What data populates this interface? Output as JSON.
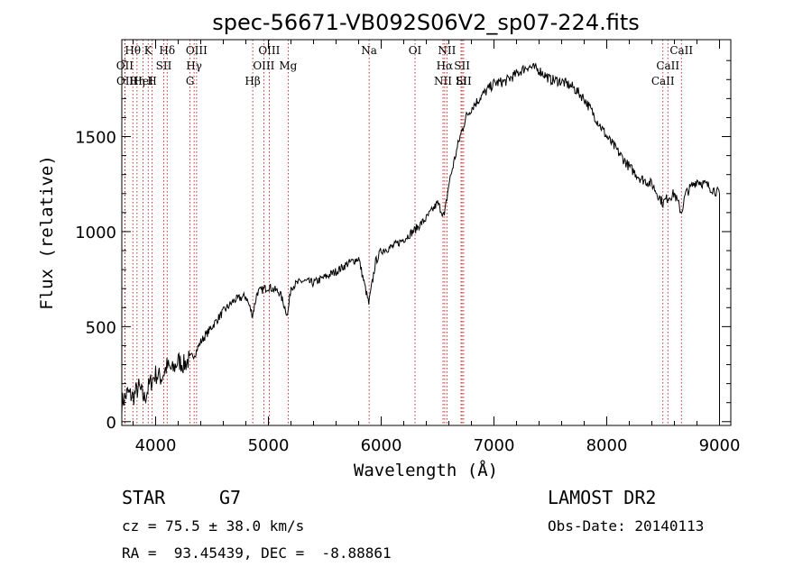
{
  "chart_data": {
    "type": "line",
    "title": "spec-56671-VB092S06V2_sp07-224.fits",
    "xlabel": "Wavelength (Å)",
    "ylabel": "Flux (relative)",
    "xlim": [
      3700,
      9100
    ],
    "ylim": [
      -20,
      2010
    ],
    "xticks": [
      4000,
      5000,
      6000,
      7000,
      8000,
      9000
    ],
    "xtick_labels": [
      "4000",
      "5000",
      "6000",
      "7000",
      "8000",
      "9000"
    ],
    "yticks": [
      0,
      500,
      1000,
      1500
    ],
    "ytick_labels": [
      "0",
      "500",
      "1000",
      "1500"
    ],
    "series": [
      {
        "x": [
          3700,
          3750,
          3800,
          3850,
          3900,
          3950,
          4000,
          4050,
          4100,
          4150,
          4200,
          4250,
          4300,
          4350,
          4400,
          4500,
          4600,
          4700,
          4800,
          4860,
          4900,
          5000,
          5100,
          5170,
          5200,
          5300,
          5400,
          5500,
          5600,
          5700,
          5800,
          5890,
          5950,
          6000,
          6100,
          6200,
          6300,
          6400,
          6500,
          6560,
          6600,
          6650,
          6700,
          6750,
          6800,
          6900,
          7000,
          7100,
          7200,
          7300,
          7400,
          7500,
          7600,
          7700,
          7800,
          7900,
          8000,
          8100,
          8200,
          8300,
          8400,
          8498,
          8542,
          8600,
          8662,
          8700,
          8800,
          8900,
          8950,
          9000
        ],
        "y": [
          100,
          150,
          130,
          180,
          120,
          200,
          250,
          230,
          290,
          270,
          320,
          300,
          330,
          360,
          420,
          500,
          580,
          640,
          660,
          560,
          680,
          710,
          680,
          560,
          710,
          740,
          730,
          760,
          790,
          830,
          860,
          620,
          840,
          900,
          920,
          960,
          1010,
          1070,
          1150,
          1080,
          1250,
          1380,
          1500,
          1600,
          1650,
          1720,
          1780,
          1790,
          1830,
          1870,
          1850,
          1800,
          1790,
          1760,
          1700,
          1600,
          1500,
          1420,
          1340,
          1280,
          1250,
          1150,
          1180,
          1200,
          1100,
          1200,
          1270,
          1240,
          1220,
          1200
        ]
      }
    ],
    "spectral_lines": [
      {
        "label": "Hθ",
        "x": 3798
      },
      {
        "label": "K",
        "x": 3934
      },
      {
        "label": "Hδ",
        "x": 4102
      },
      {
        "label": "OII",
        "x": 3727
      },
      {
        "label": "HeI",
        "x": 3889
      },
      {
        "label": "SII",
        "x": 4072
      },
      {
        "label": "OII",
        "x": 3729
      },
      {
        "label": "Hη",
        "x": 3835
      },
      {
        "label": "H",
        "x": 3969
      },
      {
        "label": "OIII",
        "x": 4363
      },
      {
        "label": "Hγ",
        "x": 4341
      },
      {
        "label": "G",
        "x": 4305
      },
      {
        "label": "OIII",
        "x": 5007
      },
      {
        "label": "OIII",
        "x": 4959
      },
      {
        "label": "Hβ",
        "x": 4861
      },
      {
        "label": "Mg",
        "x": 5175
      },
      {
        "label": "Na",
        "x": 5893
      },
      {
        "label": "OI",
        "x": 6300
      },
      {
        "label": "NII",
        "x": 6583
      },
      {
        "label": "SII",
        "x": 6717
      },
      {
        "label": "Hα",
        "x": 6563
      },
      {
        "label": "SII",
        "x": 6731
      },
      {
        "label": "NII",
        "x": 6548
      },
      {
        "label": "Li",
        "x": 6708
      },
      {
        "label": "CaII",
        "x": 8662
      },
      {
        "label": "CaII",
        "x": 8542
      },
      {
        "label": "CaII",
        "x": 8498
      }
    ],
    "grid": false,
    "legend": "none"
  },
  "footer": {
    "class_label": "STAR",
    "subclass": "G7",
    "survey": "LAMOST DR2",
    "cz": "cz = 75.5 ± 38.0 km/s",
    "obs_date": "Obs-Date: 20140113",
    "coords": "RA =  93.45439, DEC =  -8.88861"
  },
  "colors": {
    "axes": "#000000",
    "line_markers": "#b00000"
  }
}
